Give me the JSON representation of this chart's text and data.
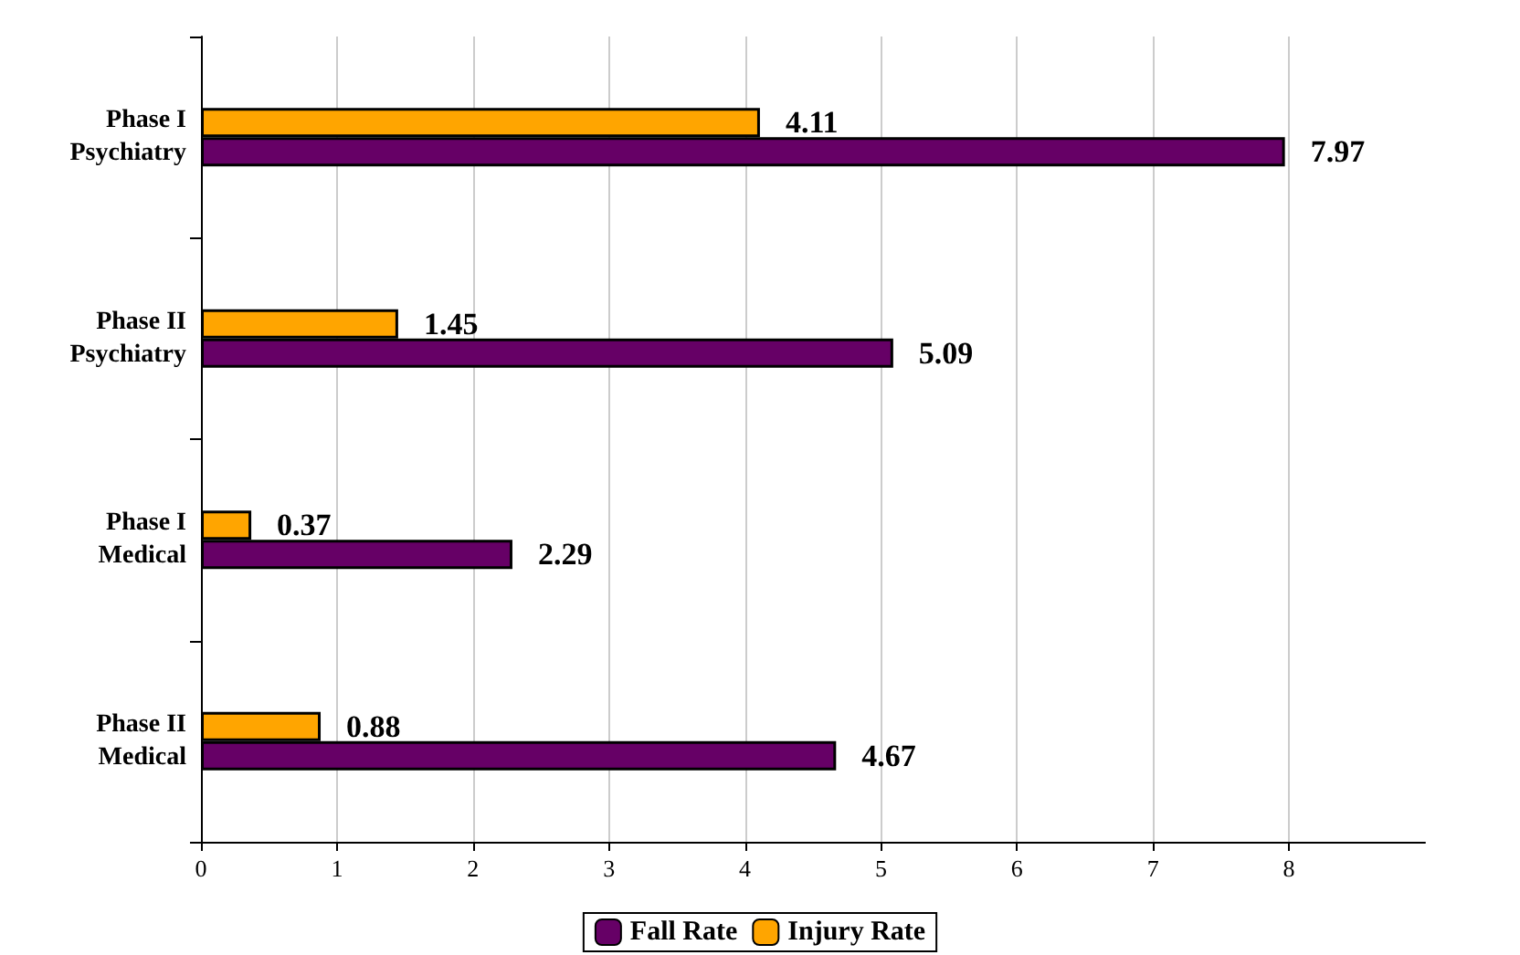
{
  "chart_data": {
    "type": "bar",
    "orientation": "horizontal",
    "categories": [
      "Phase I\nPsychiatry",
      "Phase II\nPsychiatry",
      "Phase I\nMedical",
      "Phase II\nMedical"
    ],
    "series": [
      {
        "name": "Fall Rate",
        "color": "#660066",
        "values": [
          7.97,
          5.09,
          2.29,
          4.67
        ]
      },
      {
        "name": "Injury Rate",
        "color": "#ffa500",
        "values": [
          4.11,
          1.45,
          0.37,
          0.88
        ]
      }
    ],
    "xlim": [
      0,
      9
    ],
    "xticks": [
      0,
      1,
      2,
      3,
      4,
      5,
      6,
      7,
      8
    ],
    "grid": "x",
    "legend": "bottom",
    "data_labels": true
  }
}
